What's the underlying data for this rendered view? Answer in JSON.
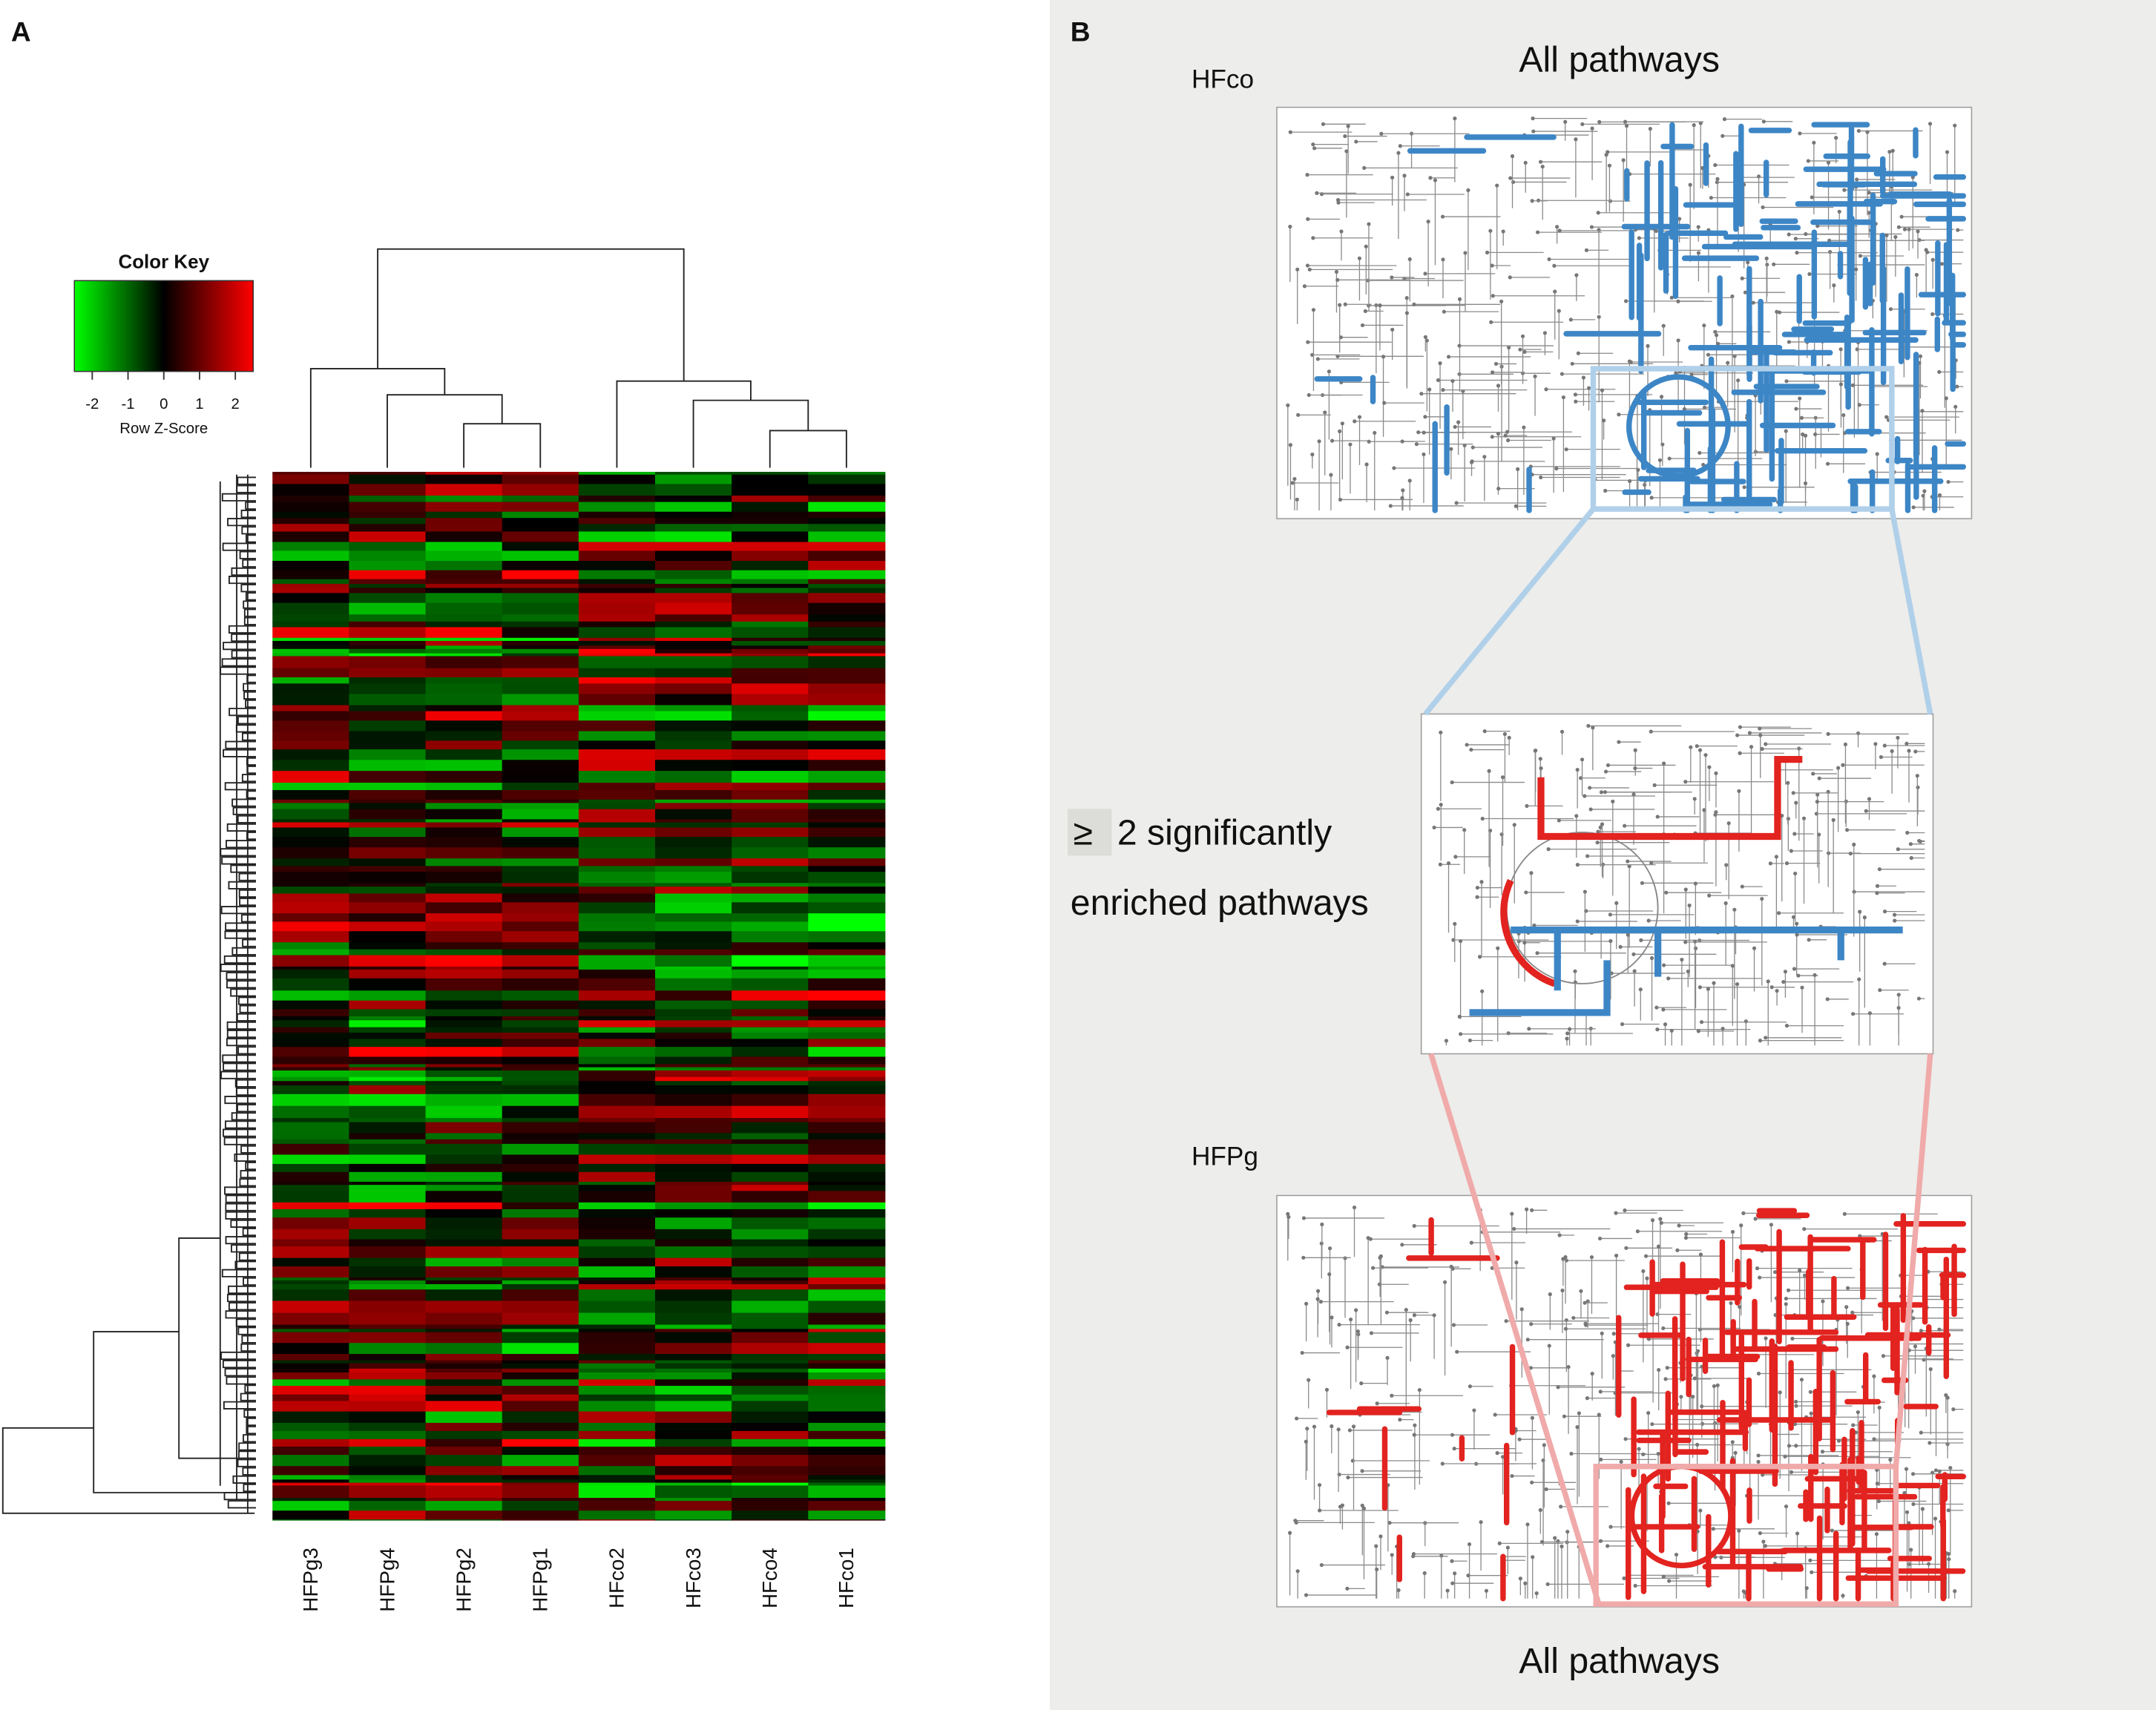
{
  "panel_a": {
    "label": "A",
    "color_key": {
      "title": "Color Key",
      "ticks": [
        -2,
        -1,
        0,
        1,
        2
      ],
      "lim": [
        -2.5,
        2.5
      ],
      "colors": [
        "#00ff00",
        "#000000",
        "#ff0000"
      ],
      "axis_label": "Row Z-Score"
    },
    "samples": [
      "HFPg3",
      "HFPg4",
      "HFPg2",
      "HFPg1",
      "HFco2",
      "HFco3",
      "HFco4",
      "HFco1"
    ]
  },
  "panel_b": {
    "label": "B",
    "top": {
      "title": "All pathways",
      "group": "HFco",
      "color": "#3d86c6"
    },
    "middle": {
      "symbol": "≥",
      "line1": "2 significantly",
      "line2": "enriched pathways"
    },
    "bottom": {
      "group": "HFPg",
      "title": "All pathways",
      "color": "#e2231f"
    }
  }
}
